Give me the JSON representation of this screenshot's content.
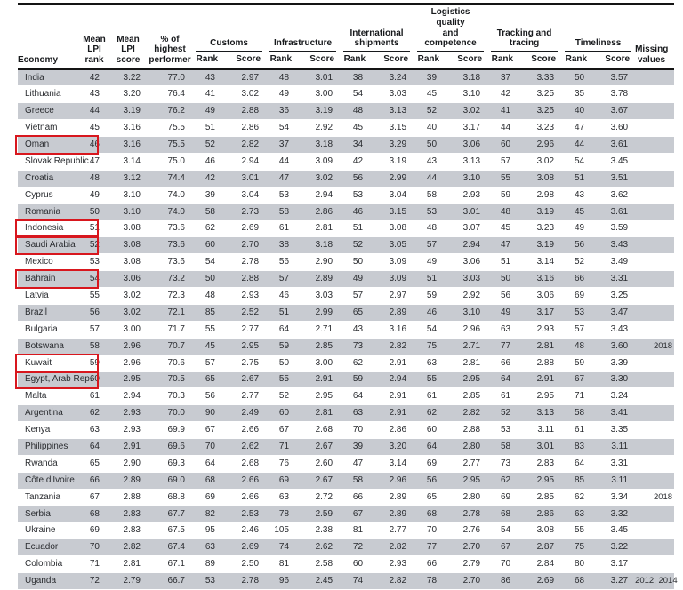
{
  "accent_colors": {
    "highlight_box": "#d8171e",
    "row_shading": "#c8cbd1",
    "rule": "#141414"
  },
  "table": {
    "headers": {
      "economy": "Economy",
      "mean_rank": "Mean\nLPI\nrank",
      "mean_score": "Mean\nLPI\nscore",
      "pct": "% of\nhighest\nperformer",
      "groups": [
        "Customs",
        "Infrastructure",
        "International\nshipments",
        "Logistics quality\nand competence",
        "Tracking and\ntracing",
        "Timeliness"
      ],
      "rank": "Rank",
      "score": "Score",
      "missing": "Missing\nvalues"
    },
    "rows": [
      {
        "economy": "India",
        "boxed": false,
        "v": [
          "42",
          "3.22",
          "77.0",
          "43",
          "2.97",
          "48",
          "3.01",
          "38",
          "3.24",
          "39",
          "3.18",
          "37",
          "3.33",
          "50",
          "3.57"
        ],
        "missing": ""
      },
      {
        "economy": "Lithuania",
        "boxed": false,
        "v": [
          "43",
          "3.20",
          "76.4",
          "41",
          "3.02",
          "49",
          "3.00",
          "54",
          "3.03",
          "45",
          "3.10",
          "42",
          "3.25",
          "35",
          "3.78"
        ],
        "missing": ""
      },
      {
        "economy": "Greece",
        "boxed": false,
        "v": [
          "44",
          "3.19",
          "76.2",
          "49",
          "2.88",
          "36",
          "3.19",
          "48",
          "3.13",
          "52",
          "3.02",
          "41",
          "3.25",
          "40",
          "3.67"
        ],
        "missing": ""
      },
      {
        "economy": "Vietnam",
        "boxed": false,
        "v": [
          "45",
          "3.16",
          "75.5",
          "51",
          "2.86",
          "54",
          "2.92",
          "45",
          "3.15",
          "40",
          "3.17",
          "44",
          "3.23",
          "47",
          "3.60"
        ],
        "missing": ""
      },
      {
        "economy": "Oman",
        "boxed": true,
        "v": [
          "46",
          "3.16",
          "75.5",
          "52",
          "2.82",
          "37",
          "3.18",
          "34",
          "3.29",
          "50",
          "3.06",
          "60",
          "2.96",
          "44",
          "3.61"
        ],
        "missing": ""
      },
      {
        "economy": "Slovak Republic",
        "boxed": false,
        "v": [
          "47",
          "3.14",
          "75.0",
          "46",
          "2.94",
          "44",
          "3.09",
          "42",
          "3.19",
          "43",
          "3.13",
          "57",
          "3.02",
          "54",
          "3.45"
        ],
        "missing": ""
      },
      {
        "economy": "Croatia",
        "boxed": false,
        "v": [
          "48",
          "3.12",
          "74.4",
          "42",
          "3.01",
          "47",
          "3.02",
          "56",
          "2.99",
          "44",
          "3.10",
          "55",
          "3.08",
          "51",
          "3.51"
        ],
        "missing": ""
      },
      {
        "economy": "Cyprus",
        "boxed": false,
        "v": [
          "49",
          "3.10",
          "74.0",
          "39",
          "3.04",
          "53",
          "2.94",
          "53",
          "3.04",
          "58",
          "2.93",
          "59",
          "2.98",
          "43",
          "3.62"
        ],
        "missing": ""
      },
      {
        "economy": "Romania",
        "boxed": false,
        "v": [
          "50",
          "3.10",
          "74.0",
          "58",
          "2.73",
          "58",
          "2.86",
          "46",
          "3.15",
          "53",
          "3.01",
          "48",
          "3.19",
          "45",
          "3.61"
        ],
        "missing": ""
      },
      {
        "economy": "Indonesia",
        "boxed": true,
        "v": [
          "51",
          "3.08",
          "73.6",
          "62",
          "2.69",
          "61",
          "2.81",
          "51",
          "3.08",
          "48",
          "3.07",
          "45",
          "3.23",
          "49",
          "3.59"
        ],
        "missing": ""
      },
      {
        "economy": "Saudi Arabia",
        "boxed": true,
        "v": [
          "52",
          "3.08",
          "73.6",
          "60",
          "2.70",
          "38",
          "3.18",
          "52",
          "3.05",
          "57",
          "2.94",
          "47",
          "3.19",
          "56",
          "3.43"
        ],
        "missing": ""
      },
      {
        "economy": "Mexico",
        "boxed": false,
        "v": [
          "53",
          "3.08",
          "73.6",
          "54",
          "2.78",
          "56",
          "2.90",
          "50",
          "3.09",
          "49",
          "3.06",
          "51",
          "3.14",
          "52",
          "3.49"
        ],
        "missing": ""
      },
      {
        "economy": "Bahrain",
        "boxed": true,
        "v": [
          "54",
          "3.06",
          "73.2",
          "50",
          "2.88",
          "57",
          "2.89",
          "49",
          "3.09",
          "51",
          "3.03",
          "50",
          "3.16",
          "66",
          "3.31"
        ],
        "missing": ""
      },
      {
        "economy": "Latvia",
        "boxed": false,
        "v": [
          "55",
          "3.02",
          "72.3",
          "48",
          "2.93",
          "46",
          "3.03",
          "57",
          "2.97",
          "59",
          "2.92",
          "56",
          "3.06",
          "69",
          "3.25"
        ],
        "missing": ""
      },
      {
        "economy": "Brazil",
        "boxed": false,
        "v": [
          "56",
          "3.02",
          "72.1",
          "85",
          "2.52",
          "51",
          "2.99",
          "65",
          "2.89",
          "46",
          "3.10",
          "49",
          "3.17",
          "53",
          "3.47"
        ],
        "missing": ""
      },
      {
        "economy": "Bulgaria",
        "boxed": false,
        "v": [
          "57",
          "3.00",
          "71.7",
          "55",
          "2.77",
          "64",
          "2.71",
          "43",
          "3.16",
          "54",
          "2.96",
          "63",
          "2.93",
          "57",
          "3.43"
        ],
        "missing": ""
      },
      {
        "economy": "Botswana",
        "boxed": false,
        "v": [
          "58",
          "2.96",
          "70.7",
          "45",
          "2.95",
          "59",
          "2.85",
          "73",
          "2.82",
          "75",
          "2.71",
          "77",
          "2.81",
          "48",
          "3.60"
        ],
        "missing": "2018"
      },
      {
        "economy": "Kuwait",
        "boxed": true,
        "v": [
          "59",
          "2.96",
          "70.6",
          "57",
          "2.75",
          "50",
          "3.00",
          "62",
          "2.91",
          "63",
          "2.81",
          "66",
          "2.88",
          "59",
          "3.39"
        ],
        "missing": ""
      },
      {
        "economy": "Egypt, Arab Rep.",
        "boxed": true,
        "v": [
          "60",
          "2.95",
          "70.5",
          "65",
          "2.67",
          "55",
          "2.91",
          "59",
          "2.94",
          "55",
          "2.95",
          "64",
          "2.91",
          "67",
          "3.30"
        ],
        "missing": ""
      },
      {
        "economy": "Malta",
        "boxed": false,
        "v": [
          "61",
          "2.94",
          "70.3",
          "56",
          "2.77",
          "52",
          "2.95",
          "64",
          "2.91",
          "61",
          "2.85",
          "61",
          "2.95",
          "71",
          "3.24"
        ],
        "missing": ""
      },
      {
        "economy": "Argentina",
        "boxed": false,
        "v": [
          "62",
          "2.93",
          "70.0",
          "90",
          "2.49",
          "60",
          "2.81",
          "63",
          "2.91",
          "62",
          "2.82",
          "52",
          "3.13",
          "58",
          "3.41"
        ],
        "missing": ""
      },
      {
        "economy": "Kenya",
        "boxed": false,
        "v": [
          "63",
          "2.93",
          "69.9",
          "67",
          "2.66",
          "67",
          "2.68",
          "70",
          "2.86",
          "60",
          "2.88",
          "53",
          "3.11",
          "61",
          "3.35"
        ],
        "missing": ""
      },
      {
        "economy": "Philippines",
        "boxed": false,
        "v": [
          "64",
          "2.91",
          "69.6",
          "70",
          "2.62",
          "71",
          "2.67",
          "39",
          "3.20",
          "64",
          "2.80",
          "58",
          "3.01",
          "83",
          "3.11"
        ],
        "missing": ""
      },
      {
        "economy": "Rwanda",
        "boxed": false,
        "v": [
          "65",
          "2.90",
          "69.3",
          "64",
          "2.68",
          "76",
          "2.60",
          "47",
          "3.14",
          "69",
          "2.77",
          "73",
          "2.83",
          "64",
          "3.31"
        ],
        "missing": ""
      },
      {
        "economy": "Côte d'Ivoire",
        "boxed": false,
        "v": [
          "66",
          "2.89",
          "69.0",
          "68",
          "2.66",
          "69",
          "2.67",
          "58",
          "2.96",
          "56",
          "2.95",
          "62",
          "2.95",
          "85",
          "3.11"
        ],
        "missing": ""
      },
      {
        "economy": "Tanzania",
        "boxed": false,
        "v": [
          "67",
          "2.88",
          "68.8",
          "69",
          "2.66",
          "63",
          "2.72",
          "66",
          "2.89",
          "65",
          "2.80",
          "69",
          "2.85",
          "62",
          "3.34"
        ],
        "missing": "2018"
      },
      {
        "economy": "Serbia",
        "boxed": false,
        "v": [
          "68",
          "2.83",
          "67.7",
          "82",
          "2.53",
          "78",
          "2.59",
          "67",
          "2.89",
          "68",
          "2.78",
          "68",
          "2.86",
          "63",
          "3.32"
        ],
        "missing": ""
      },
      {
        "economy": "Ukraine",
        "boxed": false,
        "v": [
          "69",
          "2.83",
          "67.5",
          "95",
          "2.46",
          "105",
          "2.38",
          "81",
          "2.77",
          "70",
          "2.76",
          "54",
          "3.08",
          "55",
          "3.45"
        ],
        "missing": ""
      },
      {
        "economy": "Ecuador",
        "boxed": false,
        "v": [
          "70",
          "2.82",
          "67.4",
          "63",
          "2.69",
          "74",
          "2.62",
          "72",
          "2.82",
          "77",
          "2.70",
          "67",
          "2.87",
          "75",
          "3.22"
        ],
        "missing": ""
      },
      {
        "economy": "Colombia",
        "boxed": false,
        "v": [
          "71",
          "2.81",
          "67.1",
          "89",
          "2.50",
          "81",
          "2.58",
          "60",
          "2.93",
          "66",
          "2.79",
          "70",
          "2.84",
          "80",
          "3.17"
        ],
        "missing": ""
      },
      {
        "economy": "Uganda",
        "boxed": false,
        "v": [
          "72",
          "2.79",
          "66.7",
          "53",
          "2.78",
          "96",
          "2.45",
          "74",
          "2.82",
          "78",
          "2.70",
          "86",
          "2.69",
          "68",
          "3.27"
        ],
        "missing": "2012, 2014"
      }
    ]
  }
}
